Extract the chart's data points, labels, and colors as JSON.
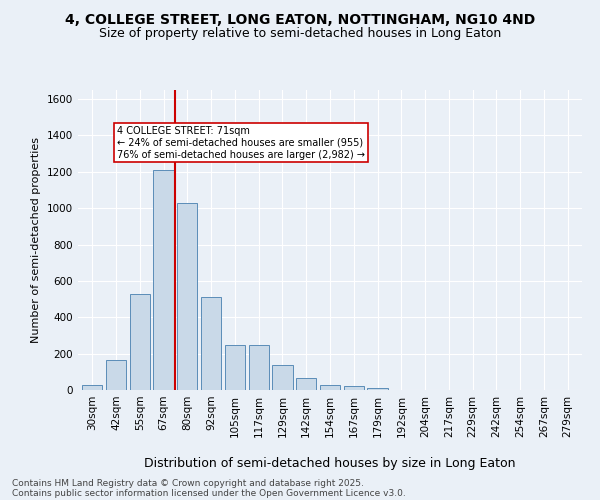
{
  "title1": "4, COLLEGE STREET, LONG EATON, NOTTINGHAM, NG10 4ND",
  "title2": "Size of property relative to semi-detached houses in Long Eaton",
  "xlabel": "Distribution of semi-detached houses by size in Long Eaton",
  "ylabel": "Number of semi-detached properties",
  "bar_labels": [
    "30sqm",
    "42sqm",
    "55sqm",
    "67sqm",
    "80sqm",
    "92sqm",
    "105sqm",
    "117sqm",
    "129sqm",
    "142sqm",
    "154sqm",
    "167sqm",
    "179sqm",
    "192sqm",
    "204sqm",
    "217sqm",
    "229sqm",
    "242sqm",
    "254sqm",
    "267sqm",
    "279sqm"
  ],
  "bar_heights": [
    30,
    165,
    530,
    1210,
    1030,
    510,
    245,
    245,
    140,
    65,
    30,
    20,
    10,
    0,
    0,
    0,
    0,
    0,
    0,
    0,
    0
  ],
  "bar_color": "#c9d9e8",
  "bar_edge_color": "#5b8db8",
  "vline_x": 3.5,
  "vline_color": "#cc0000",
  "annotation_text": "4 COLLEGE STREET: 71sqm\n← 24% of semi-detached houses are smaller (955)\n76% of semi-detached houses are larger (2,982) →",
  "annotation_box_color": "#ffffff",
  "annotation_box_edge": "#cc0000",
  "ylim": [
    0,
    1650
  ],
  "yticks": [
    0,
    200,
    400,
    600,
    800,
    1000,
    1200,
    1400,
    1600
  ],
  "footnote1": "Contains HM Land Registry data © Crown copyright and database right 2025.",
  "footnote2": "Contains public sector information licensed under the Open Government Licence v3.0.",
  "background_color": "#eaf0f7",
  "grid_color": "#ffffff",
  "title1_fontsize": 10,
  "title2_fontsize": 9,
  "xlabel_fontsize": 9,
  "ylabel_fontsize": 8,
  "tick_fontsize": 7.5,
  "footnote_fontsize": 6.5
}
